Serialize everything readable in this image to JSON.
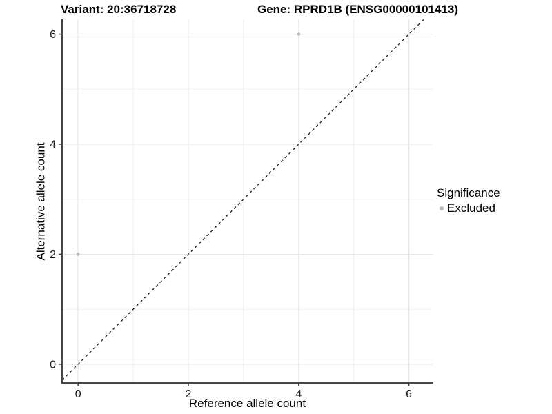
{
  "titles": {
    "variant": "Variant: 20:36718728",
    "gene": "Gene: RPRD1B (ENSG00000101413)"
  },
  "legend": {
    "title": "Significance",
    "items": [
      {
        "label": "Excluded",
        "color": "#b8b8b8"
      }
    ]
  },
  "chart_data": {
    "type": "scatter",
    "title": "Variant: 20:36718728 / Gene: RPRD1B (ENSG00000101413)",
    "xlabel": "Reference allele count",
    "ylabel": "Alternative allele count",
    "x_ticks": [
      0,
      2,
      4,
      6
    ],
    "y_ticks": [
      0,
      2,
      4,
      6
    ],
    "x_minor": [
      1,
      3,
      5
    ],
    "y_minor": [
      1,
      3,
      5
    ],
    "xlim": [
      -0.29,
      6.43
    ],
    "ylim": [
      -0.34,
      6.27
    ],
    "grid": true,
    "legend_position": "right",
    "series": [
      {
        "name": "Excluded",
        "color": "#b8b8b8",
        "points": [
          {
            "x": 0,
            "y": 2
          },
          {
            "x": 4,
            "y": 6
          }
        ]
      }
    ],
    "reference_line": {
      "type": "identity",
      "slope": 1,
      "intercept": 0,
      "style": "dashed"
    }
  },
  "style": {
    "background": "#ffffff",
    "axis_color": "#454545",
    "grid_major": "#e6e6e6",
    "grid_minor": "#f0f0f0",
    "tick_label_color": "#1a1a1a",
    "ref_line_color": "#111111"
  }
}
